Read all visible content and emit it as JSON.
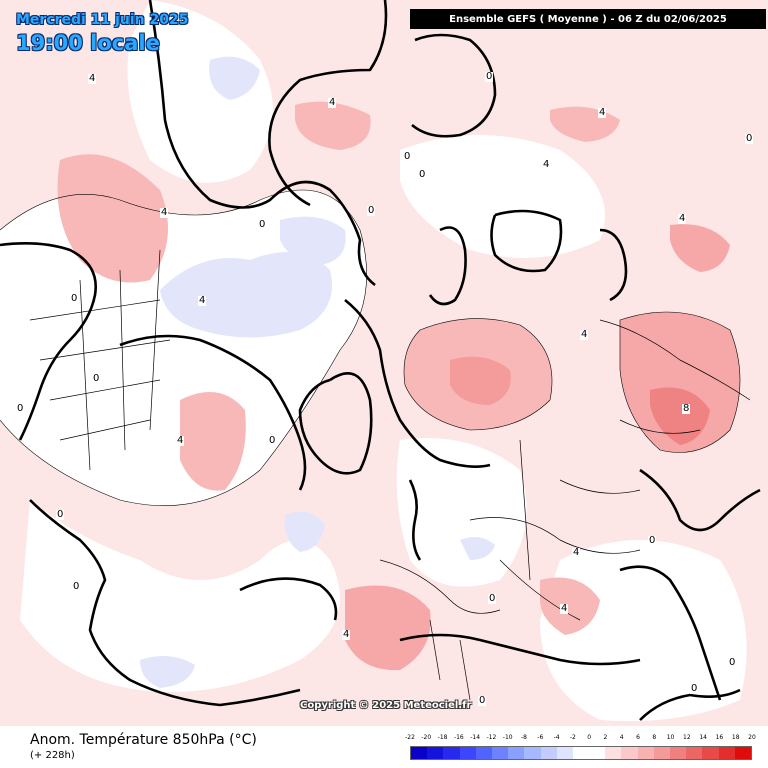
{
  "header": {
    "date": "Mercredi 11 juin 2025",
    "local_time": "19:00 locale",
    "model_run": "Ensemble GEFS  ( Moyenne )  -  06 Z du 02/06/2025"
  },
  "watermark": "Copyright © 2025 Meteociel.fr",
  "footer": {
    "variable": "Anom. Température 850hPa (°C)",
    "lead_time": "(+ 228h)"
  },
  "legend": {
    "ticks": [
      "-22",
      "-20",
      "-18",
      "-16",
      "-14",
      "-12",
      "-10",
      "-8",
      "-6",
      "-4",
      "-2",
      "0",
      "2",
      "4",
      "6",
      "8",
      "10",
      "12",
      "14",
      "16",
      "18",
      "20"
    ],
    "colors": [
      "#0a00c8",
      "#1414dc",
      "#2828ee",
      "#3c46ff",
      "#5064ff",
      "#6e82ff",
      "#8aa0ff",
      "#a6b8ff",
      "#c2cdfc",
      "#dfe3fb",
      "#ffffff",
      "#ffffff",
      "#fde0e0",
      "#fbc9c9",
      "#f8b2b2",
      "#f49a9a",
      "#f08080",
      "#ec6666",
      "#e84a4a",
      "#e42e2e",
      "#e00c0c"
    ]
  },
  "contour_labels": [
    {
      "text": "4"
    },
    {
      "text": "0"
    },
    {
      "text": "4"
    },
    {
      "text": "0"
    },
    {
      "text": "0"
    },
    {
      "text": "0"
    },
    {
      "text": "4"
    },
    {
      "text": "4"
    },
    {
      "text": "0"
    },
    {
      "text": "4"
    },
    {
      "text": "4"
    },
    {
      "text": "0"
    },
    {
      "text": "0"
    },
    {
      "text": "4"
    },
    {
      "text": "0"
    },
    {
      "text": "0"
    },
    {
      "text": "4"
    },
    {
      "text": "0"
    },
    {
      "text": "4"
    },
    {
      "text": "8"
    },
    {
      "text": "0"
    },
    {
      "text": "4"
    },
    {
      "text": "0"
    },
    {
      "text": "0"
    },
    {
      "text": "0"
    },
    {
      "text": "0"
    },
    {
      "text": "4"
    },
    {
      "text": "0"
    },
    {
      "text": "4"
    },
    {
      "text": "0"
    }
  ]
}
